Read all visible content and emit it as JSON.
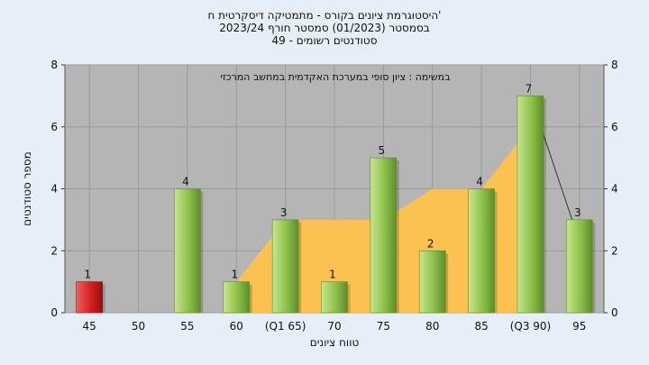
{
  "header": {
    "title_lines": [
      "היסטוגרמת ציונים בקורס - מתמטיקה דיסקרטית ח'",
      "בסמסטר  (01/2023)  סמסטר חורף 2023/24",
      "סטודנטים רשומים - 49"
    ]
  },
  "chart_data": {
    "type": "bar",
    "annotation": "במשימה : ציון סופי במערכת האקדמית במחשב המרכזי",
    "xlabel": "טווח ציונים",
    "ylabel": "מספר סטודנטים",
    "ylim": [
      0,
      8
    ],
    "yticks": [
      0,
      2,
      4,
      6,
      8
    ],
    "grid": true,
    "categories": [
      "45",
      "50",
      "55",
      "60",
      "(Q1 65)",
      "70",
      "75",
      "80",
      "85",
      "(Q3 90)",
      "95"
    ],
    "values": [
      1,
      0,
      4,
      1,
      3,
      1,
      5,
      2,
      4,
      7,
      3
    ],
    "bar_colors": [
      "#d42020",
      "#8cc04a",
      "#8cc04a",
      "#8cc04a",
      "#8cc04a",
      "#8cc04a",
      "#8cc04a",
      "#8cc04a",
      "#8cc04a",
      "#8cc04a",
      "#8cc04a"
    ],
    "area_series": {
      "category_index": [
        3,
        4,
        5,
        6,
        7,
        8,
        9
      ],
      "values": [
        1,
        3,
        3,
        3,
        4,
        4,
        6
      ],
      "color": "#ffc34d"
    },
    "line_segment": {
      "from": {
        "category_index": 9,
        "value": 7
      },
      "to": {
        "category_index": 10,
        "value": 2.3
      }
    },
    "colors": {
      "background": "#e6eef8",
      "plot_background": "#b5b5b5",
      "area": "#ffc34d",
      "bar_green": "#8cc04a",
      "bar_red": "#d42020"
    }
  }
}
